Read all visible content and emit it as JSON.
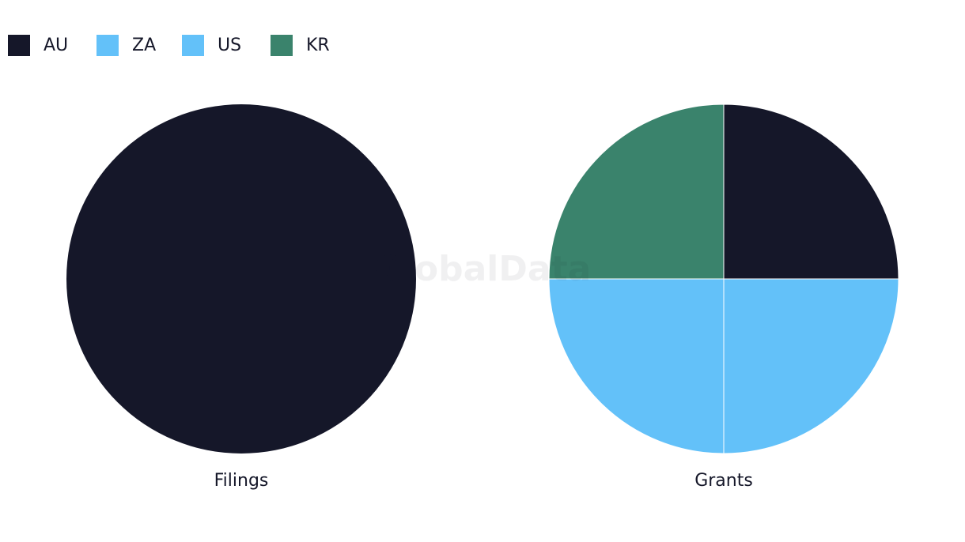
{
  "watermark": "GlobalData",
  "chart_data": [
    {
      "type": "pie",
      "title": "Filings",
      "categories": [
        "AU",
        "ZA",
        "US",
        "KR"
      ],
      "colors": [
        "#151729",
        "#63c1f9",
        "#63c1f9",
        "#3a836c"
      ],
      "values": [
        100,
        0,
        0,
        0
      ]
    },
    {
      "type": "pie",
      "title": "Grants",
      "categories": [
        "AU",
        "ZA",
        "US",
        "KR"
      ],
      "colors": [
        "#151729",
        "#63c1f9",
        "#63c1f9",
        "#3a836c"
      ],
      "values": [
        25,
        25,
        25,
        25
      ]
    }
  ]
}
